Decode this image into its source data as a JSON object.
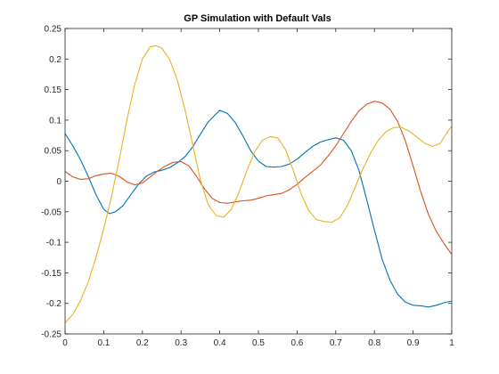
{
  "chart_data": {
    "type": "line",
    "title": "GP Simulation with Default Vals",
    "xlabel": "",
    "ylabel": "",
    "xlim": [
      0,
      1
    ],
    "ylim": [
      -0.25,
      0.25
    ],
    "xticks": [
      0,
      0.1,
      0.2,
      0.3,
      0.4,
      0.5,
      0.6,
      0.7,
      0.8,
      0.9,
      1
    ],
    "xtick_labels": [
      "0",
      "0.1",
      "0.2",
      "0.3",
      "0.4",
      "0.5",
      "0.6",
      "0.7",
      "0.8",
      "0.9",
      "1"
    ],
    "yticks": [
      -0.25,
      -0.2,
      -0.15,
      -0.1,
      -0.05,
      0,
      0.05,
      0.1,
      0.15,
      0.2,
      0.25
    ],
    "ytick_labels": [
      "-0.25",
      "-0.2",
      "-0.15",
      "-0.1",
      "-0.05",
      "0",
      "0.05",
      "0.1",
      "0.15",
      "0.2",
      "0.25"
    ],
    "grid": false,
    "legend": "none",
    "series": [
      {
        "color": "#0072BD",
        "points": [
          [
            0,
            0.078
          ],
          [
            0.02,
            0.058
          ],
          [
            0.04,
            0.035
          ],
          [
            0.06,
            0.008
          ],
          [
            0.08,
            -0.022
          ],
          [
            0.1,
            -0.046
          ],
          [
            0.115,
            -0.053
          ],
          [
            0.13,
            -0.05
          ],
          [
            0.15,
            -0.04
          ],
          [
            0.17,
            -0.022
          ],
          [
            0.19,
            -0.005
          ],
          [
            0.21,
            0.008
          ],
          [
            0.23,
            0.015
          ],
          [
            0.25,
            0.018
          ],
          [
            0.27,
            0.022
          ],
          [
            0.29,
            0.03
          ],
          [
            0.31,
            0.04
          ],
          [
            0.33,
            0.056
          ],
          [
            0.35,
            0.077
          ],
          [
            0.37,
            0.097
          ],
          [
            0.39,
            0.11
          ],
          [
            0.4,
            0.116
          ],
          [
            0.42,
            0.111
          ],
          [
            0.44,
            0.096
          ],
          [
            0.46,
            0.074
          ],
          [
            0.48,
            0.05
          ],
          [
            0.5,
            0.033
          ],
          [
            0.52,
            0.024
          ],
          [
            0.54,
            0.023
          ],
          [
            0.56,
            0.024
          ],
          [
            0.58,
            0.028
          ],
          [
            0.6,
            0.036
          ],
          [
            0.62,
            0.047
          ],
          [
            0.64,
            0.057
          ],
          [
            0.66,
            0.064
          ],
          [
            0.68,
            0.068
          ],
          [
            0.7,
            0.071
          ],
          [
            0.72,
            0.067
          ],
          [
            0.74,
            0.05
          ],
          [
            0.76,
            0.018
          ],
          [
            0.78,
            -0.03
          ],
          [
            0.8,
            -0.08
          ],
          [
            0.82,
            -0.128
          ],
          [
            0.84,
            -0.162
          ],
          [
            0.86,
            -0.185
          ],
          [
            0.88,
            -0.198
          ],
          [
            0.9,
            -0.203
          ],
          [
            0.92,
            -0.204
          ],
          [
            0.94,
            -0.206
          ],
          [
            0.96,
            -0.203
          ],
          [
            0.98,
            -0.199
          ],
          [
            1.0,
            -0.196
          ]
        ]
      },
      {
        "color": "#D95319",
        "points": [
          [
            0,
            0.016
          ],
          [
            0.02,
            0.007
          ],
          [
            0.04,
            0.003
          ],
          [
            0.06,
            0.004
          ],
          [
            0.08,
            0.009
          ],
          [
            0.1,
            0.012
          ],
          [
            0.12,
            0.013
          ],
          [
            0.14,
            0.008
          ],
          [
            0.16,
            -0.001
          ],
          [
            0.18,
            -0.006
          ],
          [
            0.2,
            -0.003
          ],
          [
            0.22,
            0.007
          ],
          [
            0.24,
            0.017
          ],
          [
            0.26,
            0.025
          ],
          [
            0.28,
            0.031
          ],
          [
            0.3,
            0.032
          ],
          [
            0.32,
            0.025
          ],
          [
            0.34,
            0.008
          ],
          [
            0.36,
            -0.012
          ],
          [
            0.38,
            -0.028
          ],
          [
            0.4,
            -0.035
          ],
          [
            0.42,
            -0.036
          ],
          [
            0.44,
            -0.034
          ],
          [
            0.46,
            -0.032
          ],
          [
            0.48,
            -0.031
          ],
          [
            0.5,
            -0.028
          ],
          [
            0.52,
            -0.024
          ],
          [
            0.54,
            -0.022
          ],
          [
            0.56,
            -0.02
          ],
          [
            0.58,
            -0.014
          ],
          [
            0.6,
            -0.005
          ],
          [
            0.62,
            0.006
          ],
          [
            0.64,
            0.016
          ],
          [
            0.66,
            0.026
          ],
          [
            0.68,
            0.041
          ],
          [
            0.7,
            0.058
          ],
          [
            0.72,
            0.078
          ],
          [
            0.74,
            0.098
          ],
          [
            0.76,
            0.115
          ],
          [
            0.78,
            0.126
          ],
          [
            0.8,
            0.131
          ],
          [
            0.82,
            0.128
          ],
          [
            0.84,
            0.118
          ],
          [
            0.86,
            0.098
          ],
          [
            0.88,
            0.066
          ],
          [
            0.9,
            0.025
          ],
          [
            0.92,
            -0.018
          ],
          [
            0.94,
            -0.055
          ],
          [
            0.96,
            -0.082
          ],
          [
            0.98,
            -0.102
          ],
          [
            1.0,
            -0.12
          ]
        ]
      },
      {
        "color": "#EDB120",
        "points": [
          [
            0,
            -0.232
          ],
          [
            0.02,
            -0.218
          ],
          [
            0.04,
            -0.195
          ],
          [
            0.06,
            -0.165
          ],
          [
            0.08,
            -0.125
          ],
          [
            0.1,
            -0.078
          ],
          [
            0.12,
            -0.025
          ],
          [
            0.14,
            0.035
          ],
          [
            0.16,
            0.1
          ],
          [
            0.18,
            0.158
          ],
          [
            0.2,
            0.2
          ],
          [
            0.22,
            0.22
          ],
          [
            0.235,
            0.222
          ],
          [
            0.25,
            0.218
          ],
          [
            0.27,
            0.2
          ],
          [
            0.29,
            0.166
          ],
          [
            0.31,
            0.118
          ],
          [
            0.33,
            0.06
          ],
          [
            0.35,
            0.002
          ],
          [
            0.37,
            -0.038
          ],
          [
            0.39,
            -0.056
          ],
          [
            0.41,
            -0.059
          ],
          [
            0.43,
            -0.046
          ],
          [
            0.45,
            -0.018
          ],
          [
            0.47,
            0.017
          ],
          [
            0.49,
            0.048
          ],
          [
            0.51,
            0.067
          ],
          [
            0.53,
            0.073
          ],
          [
            0.55,
            0.071
          ],
          [
            0.57,
            0.052
          ],
          [
            0.59,
            0.018
          ],
          [
            0.61,
            -0.02
          ],
          [
            0.63,
            -0.048
          ],
          [
            0.65,
            -0.063
          ],
          [
            0.67,
            -0.066
          ],
          [
            0.69,
            -0.067
          ],
          [
            0.71,
            -0.06
          ],
          [
            0.73,
            -0.04
          ],
          [
            0.75,
            -0.01
          ],
          [
            0.77,
            0.02
          ],
          [
            0.79,
            0.046
          ],
          [
            0.81,
            0.067
          ],
          [
            0.83,
            0.081
          ],
          [
            0.85,
            0.088
          ],
          [
            0.87,
            0.088
          ],
          [
            0.89,
            0.082
          ],
          [
            0.91,
            0.072
          ],
          [
            0.93,
            0.062
          ],
          [
            0.95,
            0.057
          ],
          [
            0.97,
            0.062
          ],
          [
            0.99,
            0.082
          ],
          [
            1.0,
            0.09
          ]
        ]
      }
    ]
  }
}
